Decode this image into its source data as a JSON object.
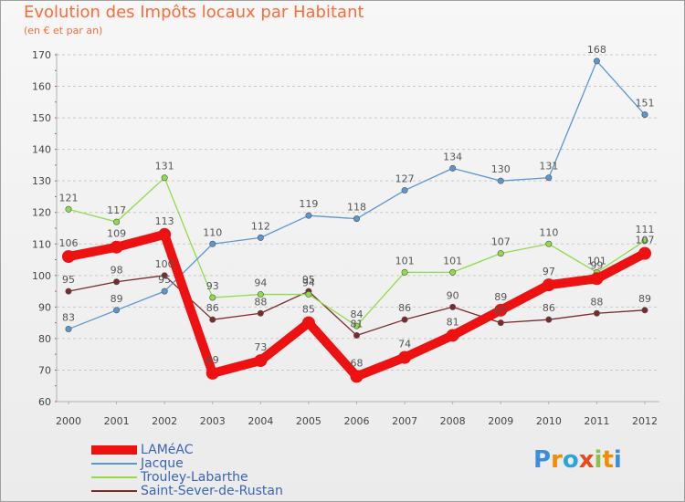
{
  "header": {
    "title": "Evolution des Impôts locaux par Habitant",
    "subtitle": "(en € et par an)"
  },
  "logo": {
    "letters": [
      "P",
      "r",
      "o",
      "x",
      "i",
      "t",
      "i"
    ],
    "colors": [
      "#3a8fd8",
      "#f28c00",
      "#2aa6d8",
      "#e84a1a",
      "#8bc34a",
      "#f28c00",
      "#3a8fd8"
    ]
  },
  "chart_data": {
    "type": "line",
    "title": "Evolution des Impôts locaux par Habitant",
    "subtitle": "(en € et par an)",
    "xlabel": "",
    "ylabel": "",
    "x": [
      2000,
      2001,
      2002,
      2003,
      2004,
      2005,
      2006,
      2007,
      2008,
      2009,
      2010,
      2011,
      2012
    ],
    "x_tick_labels": [
      "2000",
      "2001",
      "2002",
      "2003",
      "2004",
      "2005",
      "2006",
      "2007",
      "2008",
      "2009",
      "2010",
      "2011",
      "2012"
    ],
    "ylim": [
      60,
      170
    ],
    "y_ticks": [
      60,
      70,
      80,
      90,
      100,
      110,
      120,
      130,
      140,
      150,
      160,
      170
    ],
    "y_tick_labels": [
      "60",
      "70",
      "80",
      "90",
      "100",
      "110",
      "120",
      "130",
      "140",
      "150",
      "160",
      "170"
    ],
    "grid": "horizontal dashed",
    "legend_position": "bottom-left",
    "series": [
      {
        "name": "Saint-Sever-de-Rustan",
        "color": "#7a2a2a",
        "style": "thin",
        "values": [
          95,
          98,
          100,
          86,
          88,
          95,
          81,
          86,
          90,
          85,
          86,
          88,
          89
        ],
        "labels": [
          "95",
          "98",
          "100",
          "86",
          "88",
          "95",
          "81",
          "86",
          "90",
          "85",
          "86",
          "88",
          "89"
        ]
      },
      {
        "name": "Trouley-Labarthe",
        "color": "#8fdc4a",
        "style": "thin",
        "values": [
          121,
          117,
          131,
          93,
          94,
          94,
          84,
          101,
          101,
          107,
          110,
          101,
          111
        ],
        "labels": [
          "121",
          "117",
          "131",
          "93",
          "94",
          "94",
          "84",
          "101",
          "101",
          "107",
          "110",
          "101",
          "111"
        ]
      },
      {
        "name": "Jacque",
        "color": "#5a96d2",
        "style": "thin",
        "values": [
          83,
          89,
          95,
          110,
          112,
          119,
          118,
          127,
          134,
          130,
          131,
          168,
          151
        ],
        "labels": [
          "83",
          "89",
          "95",
          "110",
          "112",
          "119",
          "118",
          "127",
          "134",
          "130",
          "131",
          "168",
          "151"
        ]
      },
      {
        "name": "LAMéAC",
        "color": "#ee1111",
        "style": "thick",
        "values": [
          106,
          109,
          113,
          69,
          73,
          85,
          68,
          74,
          81,
          89,
          97,
          99,
          107
        ],
        "labels": [
          "106",
          "109",
          "113",
          "69",
          "73",
          "85",
          "68",
          "74",
          "81",
          "89",
          "97",
          "99",
          "107"
        ]
      }
    ],
    "legend_order": [
      "LAMéAC",
      "Jacque",
      "Trouley-Labarthe",
      "Saint-Sever-de-Rustan"
    ]
  }
}
